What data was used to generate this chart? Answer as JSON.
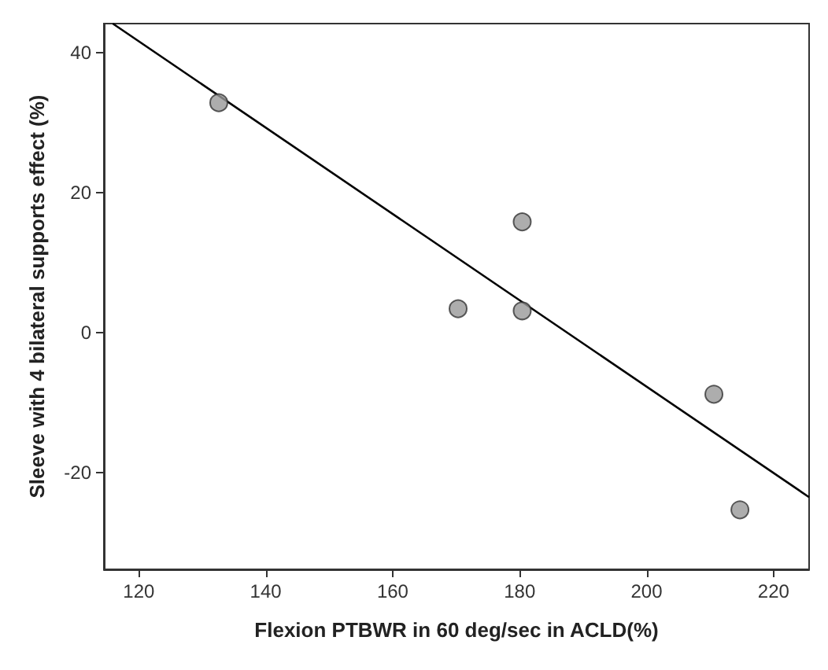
{
  "chart_data": {
    "type": "scatter",
    "xlabel": "Flexion PTBWR in 60 deg/sec in ACLD(%)",
    "ylabel": "Sleeve with 4 bilateral supports effect (%)",
    "xlim": [
      114.5,
      225.6
    ],
    "xticks": [
      120,
      140,
      160,
      180,
      200,
      220
    ],
    "ylim": [
      -33.8,
      44.1
    ],
    "yticks": [
      -20,
      0,
      20,
      40
    ],
    "grid": false,
    "marker": "circle",
    "series": [
      {
        "color": "#999999",
        "x": [
          132.6,
          180.4,
          170.3,
          180.4,
          210.6,
          214.7
        ],
        "values": [
          32.8,
          15.8,
          3.4,
          3.1,
          -8.8,
          -25.3
        ]
      },
      {
        "type": "line",
        "color": "#000000",
        "line_style": "solid",
        "marker": "none",
        "x": [
          115.9,
          225.6
        ],
        "values": [
          44.1,
          -23.5
        ]
      }
    ]
  }
}
